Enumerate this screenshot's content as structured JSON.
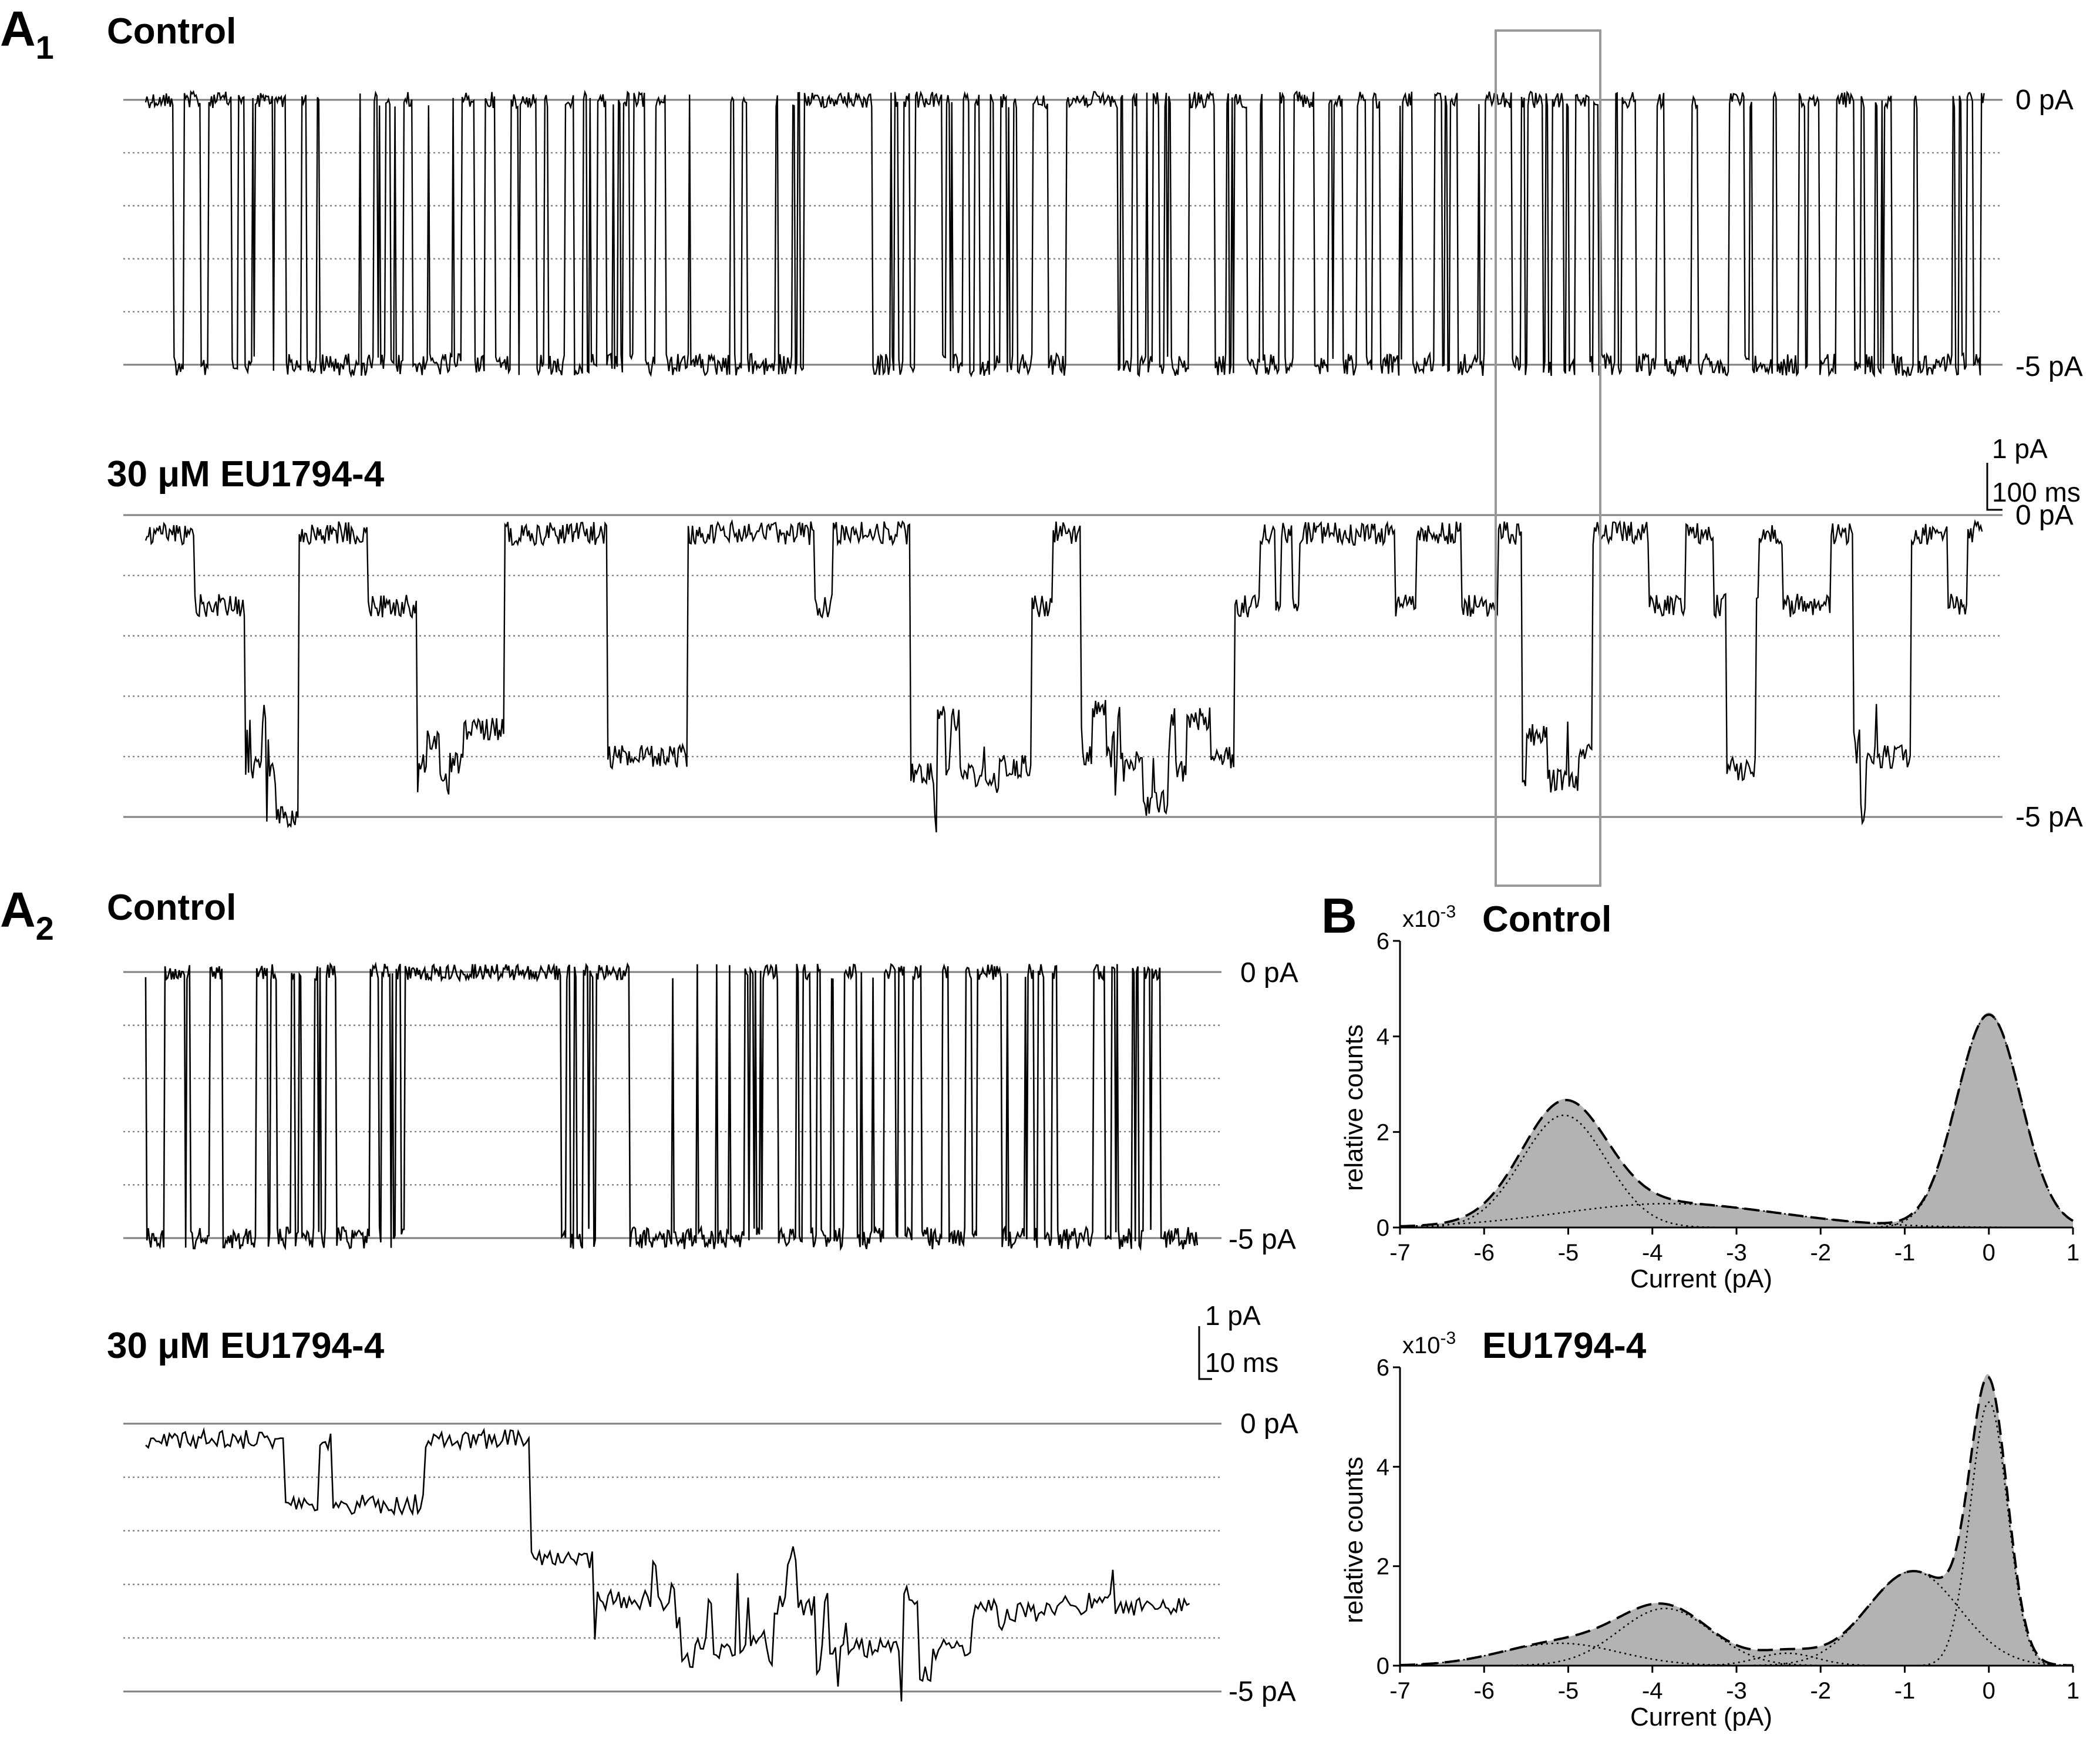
{
  "panels": {
    "A1": {
      "letter": "A",
      "sub": "1"
    },
    "A2": {
      "letter": "A",
      "sub": "2"
    },
    "B": {
      "letter": "B"
    }
  },
  "traces": {
    "a1_control_title": "Control",
    "a1_drug_title": "30 μM EU1794-4",
    "a2_control_title": "Control",
    "a2_drug_title": "30 μM EU1794-4",
    "level_zero": "0 pA",
    "level_minus5": "-5 pA",
    "scalebar_a1": {
      "amplitude": "1 pA",
      "time": "100 ms"
    },
    "scalebar_a2": {
      "amplitude": "1 pA",
      "time": "10 ms"
    }
  },
  "colors": {
    "trace": "#000000",
    "level_line": "#808080",
    "inset_box": "#999999",
    "histogram_fill": "#b3b3b3",
    "fit_line": "#000000"
  },
  "chart_data": [
    {
      "type": "area",
      "panel": "B",
      "title": "Control",
      "multiplier": "x10-3",
      "multiplier_base": "x10",
      "multiplier_exp": "-3",
      "xlabel": "Current (pA)",
      "ylabel": "relative counts",
      "xlim": [
        -7,
        1
      ],
      "ylim": [
        0,
        6
      ],
      "xticks": [
        -7,
        -6,
        -5,
        -4,
        -3,
        -2,
        -1,
        0,
        1
      ],
      "yticks": [
        0,
        2,
        4,
        6
      ],
      "components": [
        {
          "mean": 0.0,
          "sd": 0.38,
          "amp": 4.45
        },
        {
          "mean": -5.05,
          "sd": 0.5,
          "amp": 2.35
        },
        {
          "mean": -3.8,
          "sd": 1.3,
          "amp": 0.5
        }
      ],
      "series": [
        {
          "values": [
            [
              -7,
              0.02
            ],
            [
              -6.5,
              0.05
            ],
            [
              -6,
              0.35
            ],
            [
              -5.5,
              1.5
            ],
            [
              -5,
              2.6
            ],
            [
              -4.5,
              1.7
            ],
            [
              -4,
              0.8
            ],
            [
              -3.5,
              0.5
            ],
            [
              -3,
              0.4
            ],
            [
              -2.5,
              0.35
            ],
            [
              -2,
              0.3
            ],
            [
              -1.5,
              0.2
            ],
            [
              -1,
              0.1
            ],
            [
              -0.5,
              1.0
            ],
            [
              0,
              4.45
            ],
            [
              0.5,
              1.1
            ],
            [
              1,
              0.0
            ]
          ]
        }
      ]
    },
    {
      "type": "area",
      "panel": "B",
      "title": "EU1794-4",
      "multiplier": "x10-3",
      "multiplier_base": "x10",
      "multiplier_exp": "-3",
      "xlabel": "Current (pA)",
      "ylabel": "relative counts",
      "xlim": [
        -7,
        1
      ],
      "ylim": [
        0,
        6
      ],
      "xticks": [
        -7,
        -6,
        -5,
        -4,
        -3,
        -2,
        -1,
        0,
        1
      ],
      "yticks": [
        0,
        2,
        4,
        6
      ],
      "components": [
        {
          "mean": 0.0,
          "sd": 0.22,
          "amp": 5.3
        },
        {
          "mean": -0.9,
          "sd": 0.55,
          "amp": 1.9
        },
        {
          "mean": -3.85,
          "sd": 0.55,
          "amp": 1.15
        },
        {
          "mean": -5.1,
          "sd": 0.7,
          "amp": 0.45
        },
        {
          "mean": -2.4,
          "sd": 0.35,
          "amp": 0.25
        }
      ],
      "series": [
        {
          "values": [
            [
              -7,
              0.05
            ],
            [
              -6.5,
              0.1
            ],
            [
              -6,
              0.25
            ],
            [
              -5.5,
              0.5
            ],
            [
              -5,
              0.65
            ],
            [
              -4.5,
              0.9
            ],
            [
              -4,
              1.2
            ],
            [
              -3.5,
              1.0
            ],
            [
              -3,
              0.6
            ],
            [
              -2.5,
              0.5
            ],
            [
              -2,
              0.65
            ],
            [
              -1.5,
              1.3
            ],
            [
              -1,
              1.9
            ],
            [
              -0.5,
              2.7
            ],
            [
              0,
              6.2
            ],
            [
              0.5,
              1.0
            ],
            [
              1,
              0.0
            ]
          ]
        }
      ]
    }
  ]
}
